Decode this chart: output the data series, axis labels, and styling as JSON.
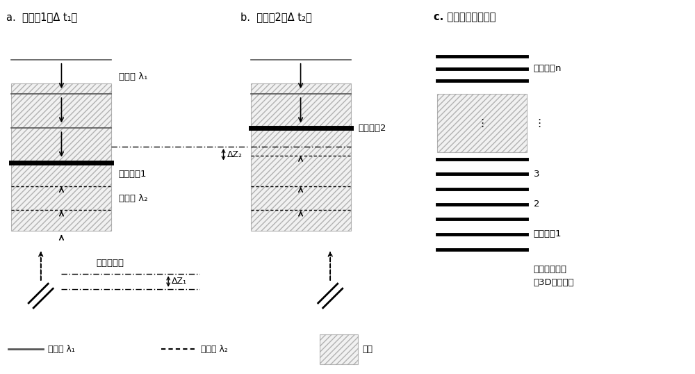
{
  "fig_width": 10.0,
  "fig_height": 5.38,
  "bg_color": "#ffffff",
  "title_a": "a.  光程差1（Δ t₁）",
  "title_b": "b.  光程差2（Δ t₂）",
  "title_c": "c. 光学三维断层成像",
  "label_lambda1": "光脉冲 λ₁",
  "label_lambda2": "光脉冲 λ₂",
  "label_signal1_a": "信号断层1",
  "label_signal2_b": "信号断层2",
  "label_delta_z2": "ΔZ₂",
  "label_delta_z1": "ΔZ₁",
  "label_opd": "光程差调节",
  "label_signal_n": "信号断层n",
  "label_3": "3",
  "label_2": "2",
  "label_signal1_c": "信号断层1",
  "label_scan": "扫描光程差实\n现3D断层成像",
  "legend_lambda1": "光脉冲 λ₁",
  "legend_lambda2": "光脉冲 λ₂",
  "legend_sample": "样本"
}
